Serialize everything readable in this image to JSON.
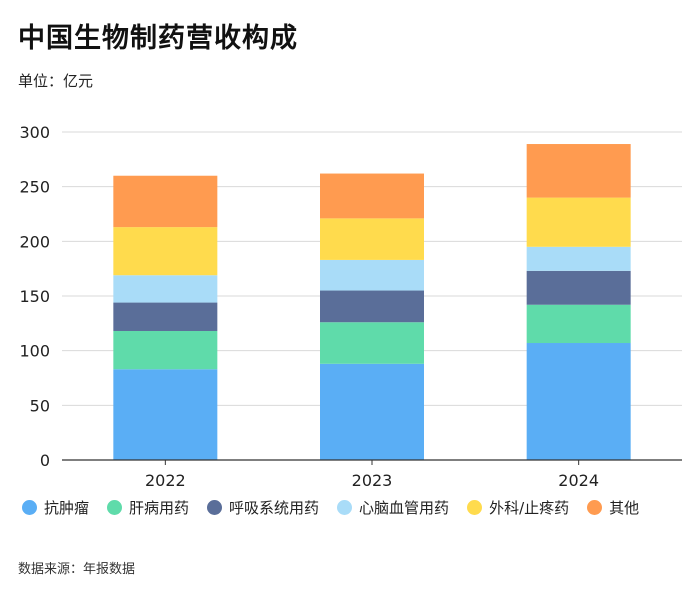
{
  "title": "中国生物制药营收构成",
  "unit_label": "单位：亿元",
  "source": "数据来源：年报数据",
  "chart_data": {
    "type": "bar",
    "stacked": true,
    "title": "中国生物制药营收构成",
    "ylabel": "单位：亿元",
    "xlabel": "",
    "ylim": [
      0,
      300
    ],
    "yticks": [
      0,
      50,
      100,
      150,
      200,
      250,
      300
    ],
    "grid": true,
    "legend_position": "bottom",
    "categories": [
      "2022",
      "2023",
      "2024"
    ],
    "series": [
      {
        "name": "抗肿瘤",
        "color": "#5aaef5",
        "values": [
          83,
          88,
          107
        ]
      },
      {
        "name": "肝病用药",
        "color": "#5fdbaa",
        "values": [
          35,
          38,
          35
        ]
      },
      {
        "name": "呼吸系统用药",
        "color": "#5a6e99",
        "values": [
          26,
          29,
          31
        ]
      },
      {
        "name": "心脑血管用药",
        "color": "#a9dcf8",
        "values": [
          25,
          28,
          22
        ]
      },
      {
        "name": "外科/止疼药",
        "color": "#ffdb4d",
        "values": [
          44,
          38,
          45
        ]
      },
      {
        "name": "其他",
        "color": "#ff9b50",
        "values": [
          47,
          41,
          49
        ]
      }
    ]
  }
}
